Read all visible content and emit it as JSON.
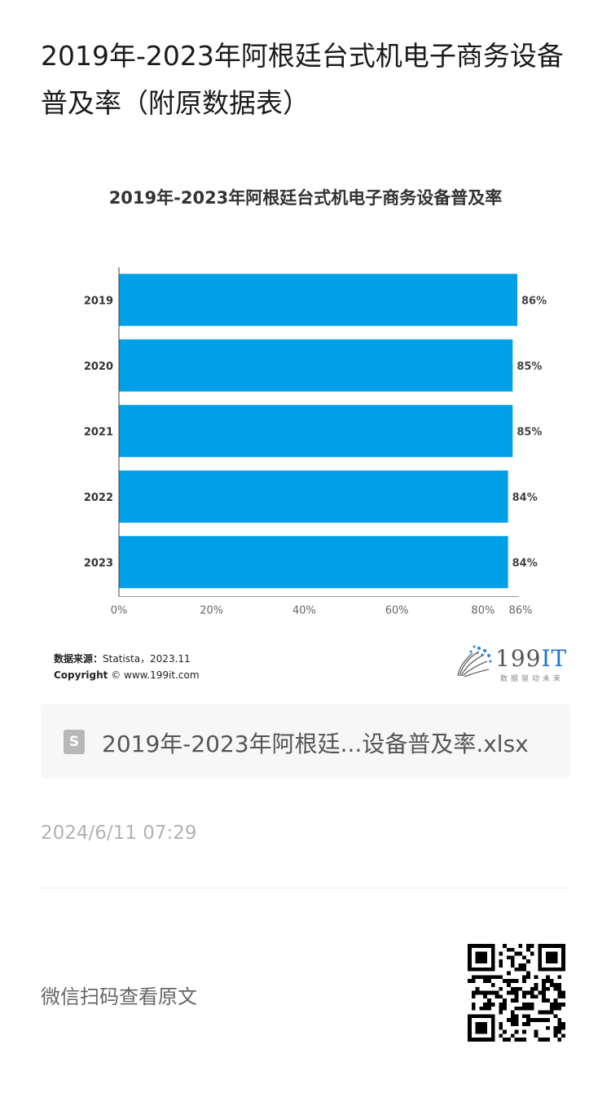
{
  "article": {
    "title": "2019年-2023年阿根廷台式机电子商务设备普及率（附原数据表）"
  },
  "chart": {
    "source_label": "数据来源：",
    "source_value": "Statista，2023.11",
    "copyright_label": "Copyright",
    "copyright_value": "© www.199it.com",
    "logo_text": "199",
    "logo_it": "IT",
    "logo_sub": "数据驱动未来"
  },
  "chart_data": {
    "type": "bar",
    "orientation": "horizontal",
    "title": "2019年-2023年阿根廷台式机电子商务设备普及率",
    "categories": [
      "2019",
      "2020",
      "2021",
      "2022",
      "2023"
    ],
    "values": [
      86,
      85,
      85,
      84,
      84
    ],
    "value_labels": [
      "86%",
      "85%",
      "85%",
      "84%",
      "84%"
    ],
    "xlim": [
      0,
      86
    ],
    "xticks": [
      "0%",
      "20%",
      "40%",
      "60%",
      "80%",
      "86%"
    ],
    "xlabel": "",
    "ylabel": "",
    "grid": false,
    "bar_color": "#00a0e9"
  },
  "attachment": {
    "icon_letter": "S",
    "file_name": "2019年-2023年阿根廷...设备普及率.xlsx"
  },
  "post": {
    "date": "2024/6/11 07:29"
  },
  "footer": {
    "scan_text": "微信扫码查看原文",
    "qr_icon": "qr-code-icon"
  }
}
